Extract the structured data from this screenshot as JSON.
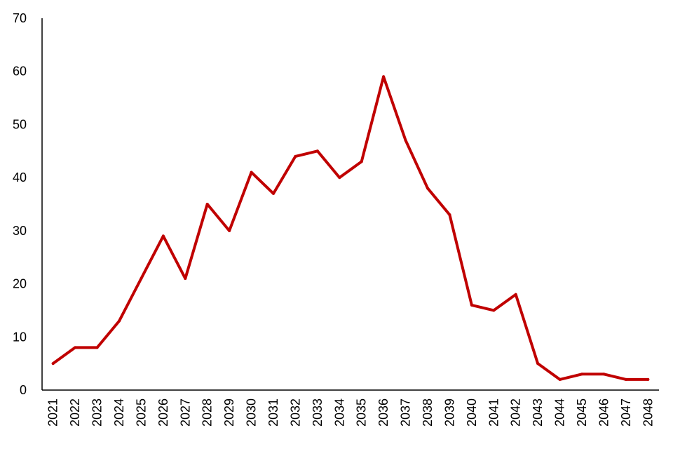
{
  "chart_data": {
    "type": "line",
    "title": "",
    "xlabel": "",
    "ylabel": "",
    "x": [
      "2021",
      "2022",
      "2023",
      "2024",
      "2025",
      "2026",
      "2027",
      "2028",
      "2029",
      "2030",
      "2031",
      "2032",
      "2033",
      "2034",
      "2035",
      "2036",
      "2037",
      "2038",
      "2039",
      "2040",
      "2041",
      "2042",
      "2043",
      "2044",
      "2045",
      "2046",
      "2047",
      "2048"
    ],
    "series": [
      {
        "values": [
          5,
          8,
          8,
          13,
          21,
          29,
          21,
          35,
          30,
          41,
          37,
          44,
          45,
          40,
          43,
          59,
          47,
          38,
          33,
          16,
          15,
          18,
          5,
          2,
          3,
          3,
          2,
          2
        ]
      }
    ],
    "ylim": [
      0,
      70
    ],
    "yticks": [
      0,
      10,
      20,
      30,
      40,
      50,
      60,
      70
    ],
    "grid": false,
    "legend": "none",
    "colors": {
      "line": "#C00000",
      "axis": "#000000",
      "text": "#000000"
    }
  }
}
